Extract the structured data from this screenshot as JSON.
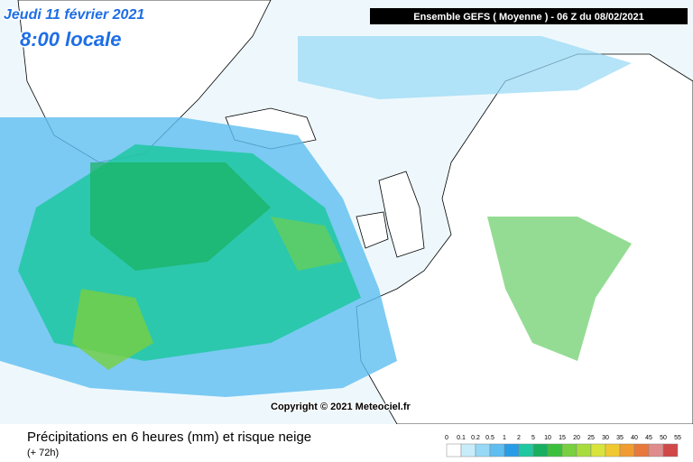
{
  "header": {
    "date": "Jeudi 11 février 2021",
    "time": "8:00 locale",
    "run": "Ensemble GEFS  ( Moyenne )  -  06 Z du 08/02/2021"
  },
  "copyright": "Copyright © 2021 Meteociel.fr",
  "footer": {
    "title": "Précipitations en 6 heures (mm) et risque neige",
    "lead": "(+ 72h)"
  },
  "legend": {
    "labels": [
      "0",
      "0.1",
      "0.2",
      "0.5",
      "1",
      "2",
      "5",
      "10",
      "15",
      "20",
      "25",
      "30",
      "35",
      "40",
      "45",
      "50",
      "55"
    ],
    "colors": [
      "#ffffff",
      "#c8ecfa",
      "#96d8f6",
      "#5ebef0",
      "#289ce6",
      "#1ec8a0",
      "#18b060",
      "#3cc03c",
      "#78d040",
      "#a8dc3c",
      "#d8e43c",
      "#f0c830",
      "#f09c30",
      "#e8783c",
      "#e08c8c",
      "#d04848"
    ]
  }
}
